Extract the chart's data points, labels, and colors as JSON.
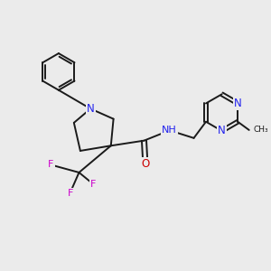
{
  "background_color": "#ebebeb",
  "figsize": [
    3.0,
    3.0
  ],
  "dpi": 100,
  "bond_color": "#1a1a1a",
  "bond_width": 1.4,
  "N_color": "#2020ee",
  "O_color": "#cc0000",
  "F_color": "#cc00cc",
  "text_fontsize": 7.5,
  "atom_bg": "#ebebeb",
  "xlim": [
    0,
    10
  ],
  "ylim": [
    0,
    10
  ]
}
